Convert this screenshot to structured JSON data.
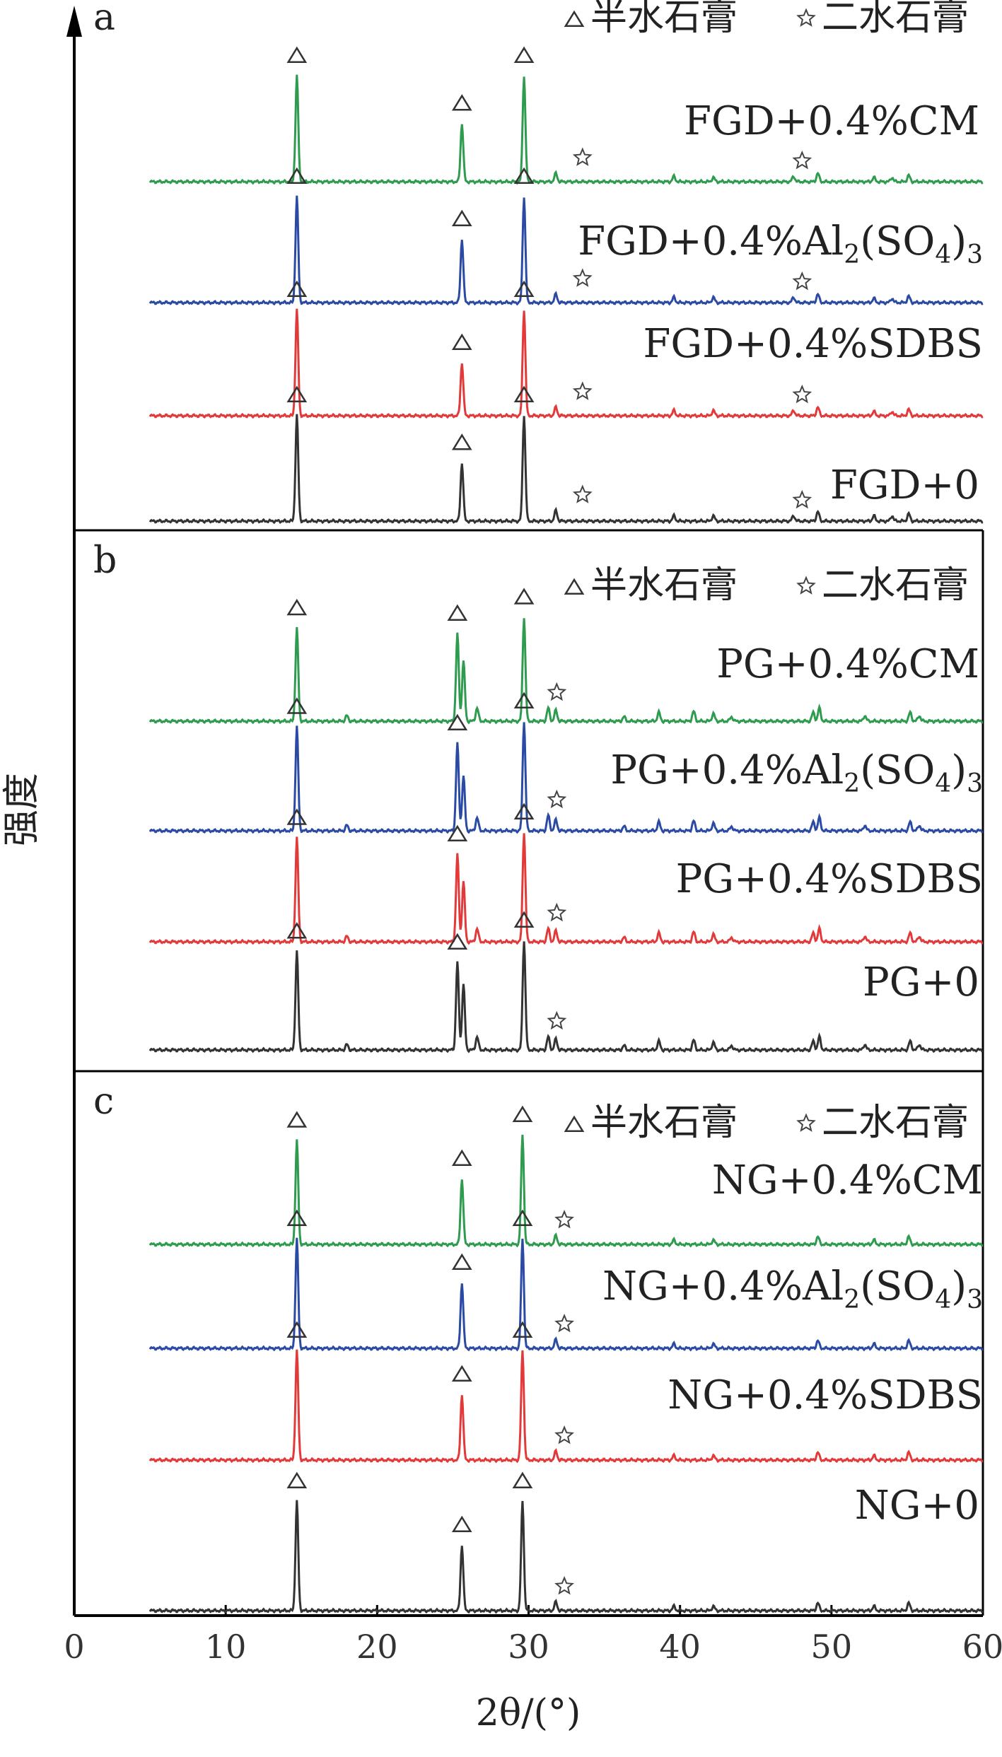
{
  "chart_data": {
    "type": "line",
    "y_axis_title": "强度",
    "x_axis_title": "2θ/(°)",
    "x_range": [
      0,
      60
    ],
    "x_ticks": [
      "0",
      "10",
      "20",
      "30",
      "40",
      "50",
      "60"
    ],
    "legend": [
      {
        "symbol": "triangle",
        "label": "半水石膏"
      },
      {
        "symbol": "star",
        "label": "二水石膏"
      }
    ],
    "colors": {
      "green": "#2e9b4f",
      "blue": "#2b4aa3",
      "red": "#e23a3a",
      "black": "#333333"
    },
    "panels": [
      {
        "letter": "a",
        "series": [
          {
            "name": "FGD+0.4%CM",
            "color": "green",
            "peaks": [
              [
                14.7,
                1.0
              ],
              [
                25.6,
                0.55
              ],
              [
                29.7,
                1.0
              ],
              [
                31.8,
                0.08
              ],
              [
                39.6,
                0.05
              ],
              [
                42.2,
                0.04
              ],
              [
                47.5,
                0.05
              ],
              [
                49.1,
                0.08
              ],
              [
                52.8,
                0.04
              ],
              [
                54.0,
                0.04
              ],
              [
                55.1,
                0.06
              ]
            ],
            "triangles": [
              14.7,
              25.6,
              29.7
            ],
            "stars": [
              33.0,
              47.5
            ]
          },
          {
            "name": "FGD+0.4%Al2(SO4)3",
            "color": "blue",
            "peaks": [
              [
                14.7,
                1.0
              ],
              [
                25.6,
                0.6
              ],
              [
                29.7,
                1.0
              ],
              [
                31.8,
                0.08
              ],
              [
                39.6,
                0.05
              ],
              [
                42.2,
                0.05
              ],
              [
                47.5,
                0.05
              ],
              [
                49.1,
                0.08
              ],
              [
                52.8,
                0.04
              ],
              [
                54.0,
                0.04
              ],
              [
                55.1,
                0.06
              ]
            ],
            "triangles": [
              14.7,
              25.6,
              29.7
            ],
            "stars": [
              33.0,
              47.5
            ]
          },
          {
            "name": "FGD+0.4%SDBS",
            "color": "red",
            "peaks": [
              [
                14.7,
                1.0
              ],
              [
                25.6,
                0.5
              ],
              [
                29.7,
                1.0
              ],
              [
                31.8,
                0.08
              ],
              [
                39.6,
                0.05
              ],
              [
                42.2,
                0.05
              ],
              [
                47.5,
                0.05
              ],
              [
                49.1,
                0.08
              ],
              [
                52.8,
                0.04
              ],
              [
                54.0,
                0.04
              ],
              [
                55.1,
                0.06
              ]
            ],
            "triangles": [
              14.7,
              25.6,
              29.7
            ],
            "stars": [
              33.0,
              47.5
            ]
          },
          {
            "name": "FGD+0",
            "color": "black",
            "peaks": [
              [
                14.7,
                1.0
              ],
              [
                25.6,
                0.55
              ],
              [
                29.7,
                1.0
              ],
              [
                31.8,
                0.1
              ],
              [
                39.6,
                0.05
              ],
              [
                42.2,
                0.05
              ],
              [
                47.5,
                0.05
              ],
              [
                49.1,
                0.09
              ],
              [
                52.8,
                0.05
              ],
              [
                54.0,
                0.05
              ],
              [
                55.1,
                0.07
              ]
            ],
            "triangles": [
              14.7,
              25.6,
              29.7
            ],
            "stars": [
              33.0,
              47.5
            ]
          }
        ]
      },
      {
        "letter": "b",
        "series": [
          {
            "name": "PG+0.4%CM",
            "color": "green",
            "peaks": [
              [
                14.7,
                0.85
              ],
              [
                18.0,
                0.05
              ],
              [
                25.3,
                0.8
              ],
              [
                25.7,
                0.55
              ],
              [
                26.6,
                0.12
              ],
              [
                29.7,
                0.95
              ],
              [
                31.3,
                0.12
              ],
              [
                31.8,
                0.1
              ],
              [
                36.3,
                0.04
              ],
              [
                38.6,
                0.08
              ],
              [
                40.9,
                0.09
              ],
              [
                42.2,
                0.07
              ],
              [
                43.4,
                0.04
              ],
              [
                48.8,
                0.08
              ],
              [
                49.2,
                0.12
              ],
              [
                52.2,
                0.05
              ],
              [
                55.2,
                0.08
              ],
              [
                55.8,
                0.05
              ]
            ],
            "triangles": [
              14.7,
              25.3,
              29.7
            ],
            "stars": [
              31.3
            ]
          },
          {
            "name": "PG+0.4%Al2(SO4)3",
            "color": "blue",
            "peaks": [
              [
                14.7,
                0.95
              ],
              [
                18.0,
                0.05
              ],
              [
                25.3,
                0.8
              ],
              [
                25.7,
                0.5
              ],
              [
                26.6,
                0.12
              ],
              [
                29.7,
                1.0
              ],
              [
                31.3,
                0.14
              ],
              [
                31.8,
                0.1
              ],
              [
                36.3,
                0.04
              ],
              [
                38.6,
                0.08
              ],
              [
                40.9,
                0.09
              ],
              [
                42.2,
                0.07
              ],
              [
                43.4,
                0.04
              ],
              [
                48.8,
                0.08
              ],
              [
                49.2,
                0.12
              ],
              [
                52.2,
                0.05
              ],
              [
                55.2,
                0.08
              ],
              [
                55.8,
                0.05
              ]
            ],
            "triangles": [
              14.7,
              25.3,
              29.7
            ],
            "stars": [
              31.3
            ]
          },
          {
            "name": "PG+0.4%SDBS",
            "color": "red",
            "peaks": [
              [
                14.7,
                0.95
              ],
              [
                18.0,
                0.05
              ],
              [
                25.3,
                0.8
              ],
              [
                25.7,
                0.55
              ],
              [
                26.6,
                0.12
              ],
              [
                29.7,
                1.0
              ],
              [
                31.3,
                0.12
              ],
              [
                31.8,
                0.1
              ],
              [
                36.3,
                0.04
              ],
              [
                38.6,
                0.08
              ],
              [
                40.9,
                0.09
              ],
              [
                42.2,
                0.07
              ],
              [
                43.4,
                0.04
              ],
              [
                48.8,
                0.08
              ],
              [
                49.2,
                0.12
              ],
              [
                52.2,
                0.05
              ],
              [
                55.2,
                0.08
              ],
              [
                55.8,
                0.05
              ]
            ],
            "triangles": [
              14.7,
              25.3,
              29.7
            ],
            "stars": [
              31.3
            ]
          },
          {
            "name": "PG+0",
            "color": "black",
            "peaks": [
              [
                14.7,
                0.9
              ],
              [
                18.0,
                0.05
              ],
              [
                25.3,
                0.8
              ],
              [
                25.7,
                0.6
              ],
              [
                26.6,
                0.12
              ],
              [
                29.7,
                1.0
              ],
              [
                31.3,
                0.12
              ],
              [
                31.8,
                0.1
              ],
              [
                36.3,
                0.04
              ],
              [
                38.6,
                0.08
              ],
              [
                40.9,
                0.09
              ],
              [
                42.2,
                0.07
              ],
              [
                43.4,
                0.04
              ],
              [
                48.8,
                0.08
              ],
              [
                49.2,
                0.12
              ],
              [
                52.2,
                0.05
              ],
              [
                55.2,
                0.08
              ],
              [
                55.8,
                0.05
              ]
            ],
            "triangles": [
              14.7,
              25.3,
              29.7
            ],
            "stars": [
              31.3
            ]
          }
        ]
      },
      {
        "letter": "c",
        "series": [
          {
            "name": "NG+0.4%CM",
            "color": "green",
            "peaks": [
              [
                14.7,
                0.95
              ],
              [
                25.6,
                0.6
              ],
              [
                29.6,
                1.0
              ],
              [
                31.8,
                0.08
              ],
              [
                39.6,
                0.04
              ],
              [
                42.2,
                0.04
              ],
              [
                49.1,
                0.07
              ],
              [
                52.8,
                0.04
              ],
              [
                55.1,
                0.07
              ]
            ],
            "triangles": [
              14.7,
              25.6,
              29.6
            ],
            "stars": [
              31.8
            ]
          },
          {
            "name": "NG+0.4%Al2(SO4)3",
            "color": "blue",
            "peaks": [
              [
                14.7,
                1.0
              ],
              [
                25.6,
                0.6
              ],
              [
                29.6,
                1.0
              ],
              [
                31.8,
                0.08
              ],
              [
                39.6,
                0.04
              ],
              [
                42.2,
                0.04
              ],
              [
                49.1,
                0.07
              ],
              [
                52.8,
                0.04
              ],
              [
                55.1,
                0.07
              ]
            ],
            "triangles": [
              14.7,
              25.6,
              29.6
            ],
            "stars": [
              31.8
            ]
          },
          {
            "name": "NG+0.4%SDBS",
            "color": "red",
            "peaks": [
              [
                14.7,
                1.0
              ],
              [
                25.6,
                0.6
              ],
              [
                29.6,
                1.0
              ],
              [
                31.8,
                0.08
              ],
              [
                39.6,
                0.04
              ],
              [
                42.2,
                0.04
              ],
              [
                49.1,
                0.07
              ],
              [
                52.8,
                0.04
              ],
              [
                55.1,
                0.07
              ]
            ],
            "triangles": [
              14.7,
              25.6,
              29.6
            ],
            "stars": [
              31.8
            ]
          },
          {
            "name": "NG+0",
            "color": "black",
            "peaks": [
              [
                14.7,
                1.0
              ],
              [
                25.6,
                0.6
              ],
              [
                29.6,
                1.0
              ],
              [
                31.8,
                0.08
              ],
              [
                39.6,
                0.04
              ],
              [
                42.2,
                0.04
              ],
              [
                49.1,
                0.07
              ],
              [
                52.8,
                0.04
              ],
              [
                55.1,
                0.07
              ]
            ],
            "triangles": [
              14.7,
              25.6,
              29.6
            ],
            "stars": [
              31.8
            ]
          }
        ]
      }
    ]
  }
}
